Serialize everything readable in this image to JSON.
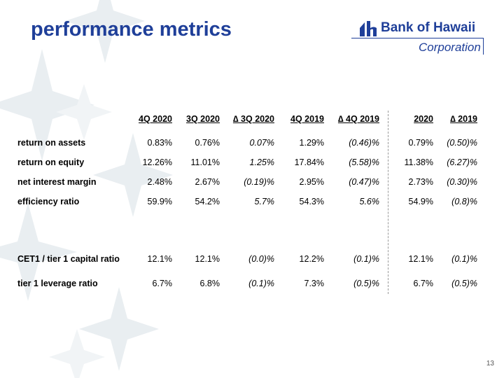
{
  "title": "performance metrics",
  "logo": {
    "name": "Bank of Hawaii",
    "sub": "Corporation"
  },
  "colors": {
    "brand": "#1f3f99",
    "decor": "#e6ecef"
  },
  "table": {
    "headers": [
      "4Q 2020",
      "3Q 2020",
      "∆ 3Q 2020",
      "4Q 2019",
      "∆ 4Q 2019",
      "2020",
      "∆ 2019"
    ],
    "rows": [
      {
        "label": "return on assets",
        "values": [
          "0.83%",
          "0.76%",
          "0.07%",
          "1.29%",
          "(0.46)%",
          "0.79%",
          "(0.50)%"
        ]
      },
      {
        "label": "return on equity",
        "values": [
          "12.26%",
          "11.01%",
          "1.25%",
          "17.84%",
          "(5.58)%",
          "11.38%",
          "(6.27)%"
        ]
      },
      {
        "label": "net interest margin",
        "values": [
          "2.48%",
          "2.67%",
          "(0.19)%",
          "2.95%",
          "(0.47)%",
          "2.73%",
          "(0.30)%"
        ]
      },
      {
        "label": "efficiency ratio",
        "values": [
          "59.9%",
          "54.2%",
          "5.7%",
          "54.3%",
          "5.6%",
          "54.9%",
          "(0.8)%"
        ]
      },
      {
        "label": "CET1 / tier 1 capital ratio",
        "values": [
          "12.1%",
          "12.1%",
          "(0.0)%",
          "12.2%",
          "(0.1)%",
          "12.1%",
          "(0.1)%"
        ]
      },
      {
        "label": "tier 1 leverage ratio",
        "values": [
          "6.7%",
          "6.8%",
          "(0.1)%",
          "7.3%",
          "(0.5)%",
          "6.7%",
          "(0.5)%"
        ]
      }
    ]
  },
  "page_number": "13"
}
